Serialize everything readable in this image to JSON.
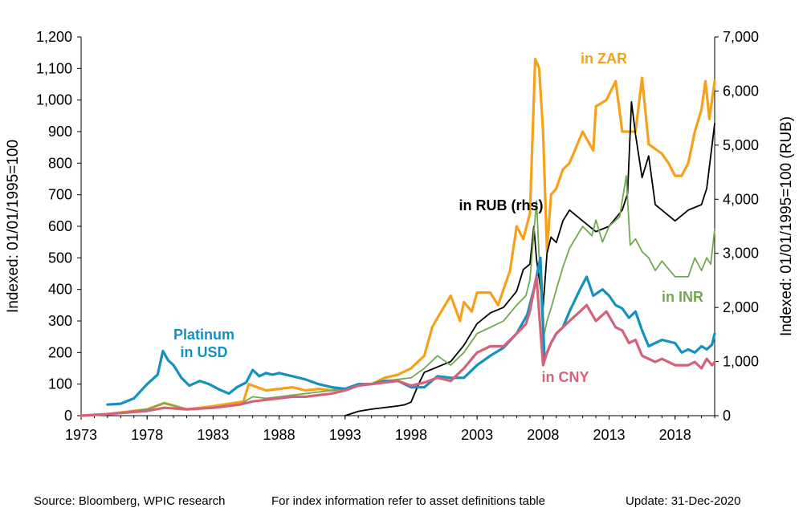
{
  "chart_data": {
    "type": "line",
    "ylabel_left": "Indexed: 01/01/1995=100",
    "ylabel_right": "Indexed: 01/01/1995=100  (RUB)",
    "xlim": [
      1973,
      2021
    ],
    "ylim_left": [
      0,
      1200
    ],
    "ylim_right": [
      0,
      7000
    ],
    "x_ticks": [
      "1973",
      "1978",
      "1983",
      "1988",
      "1993",
      "1998",
      "2003",
      "2008",
      "2013",
      "2018"
    ],
    "y_ticks_left": [
      "0",
      "100",
      "200",
      "300",
      "400",
      "500",
      "600",
      "700",
      "800",
      "900",
      "1,000",
      "1,100",
      "1,200"
    ],
    "y_ticks_right": [
      "0",
      "1,000",
      "2,000",
      "3,000",
      "4,000",
      "5,000",
      "6,000",
      "7,000"
    ],
    "grid": false,
    "series": [
      {
        "name": "Platinum in USD",
        "axis": "left",
        "color": "#1491BF",
        "x": [
          1975.0,
          1976.0,
          1977.0,
          1978.0,
          1978.8,
          1979.2,
          1979.6,
          1980.0,
          1980.6,
          1981.2,
          1982.0,
          1982.7,
          1983.5,
          1984.2,
          1984.8,
          1985.5,
          1986.0,
          1986.5,
          1987.0,
          1987.5,
          1988.0,
          1989.0,
          1990.0,
          1991.0,
          1992.0,
          1993.0,
          1994.0,
          1995.0,
          1996.0,
          1997.0,
          1998.0,
          1999.0,
          2000.0,
          2001.0,
          2002.0,
          2003.0,
          2004.0,
          2005.0,
          2006.0,
          2006.8,
          2007.3,
          2007.8,
          2008.1,
          2008.6,
          2009.0,
          2009.5,
          2010.0,
          2010.8,
          2011.3,
          2011.8,
          2012.5,
          2013.0,
          2013.5,
          2014.0,
          2014.5,
          2015.0,
          2015.5,
          2016.0,
          2016.5,
          2017.0,
          2018.0,
          2018.5,
          2019.0,
          2019.5,
          2020.0,
          2020.4,
          2020.8,
          2021.0
        ],
        "y": [
          35,
          38,
          55,
          100,
          130,
          205,
          175,
          160,
          120,
          95,
          110,
          100,
          82,
          70,
          90,
          105,
          145,
          125,
          135,
          130,
          135,
          125,
          115,
          100,
          90,
          85,
          100,
          100,
          110,
          110,
          90,
          90,
          125,
          120,
          120,
          160,
          190,
          215,
          260,
          320,
          400,
          500,
          180,
          230,
          260,
          280,
          330,
          400,
          440,
          380,
          400,
          380,
          350,
          340,
          310,
          330,
          270,
          220,
          230,
          240,
          230,
          200,
          210,
          200,
          220,
          210,
          225,
          260
        ]
      },
      {
        "name": "in ZAR",
        "axis": "left",
        "color": "#F7A11B",
        "x": [
          1973.0,
          1975.0,
          1978.0,
          1979.3,
          1981.0,
          1983.0,
          1985.3,
          1985.7,
          1987.0,
          1988.0,
          1989.0,
          1990.0,
          1991.0,
          1992.0,
          1993.0,
          1994.0,
          1995.0,
          1996.0,
          1997.0,
          1998.0,
          1999.0,
          1999.6,
          2000.0,
          2001.0,
          2001.7,
          2002.0,
          2002.6,
          2003.0,
          2004.0,
          2004.6,
          2005.0,
          2005.5,
          2006.0,
          2006.5,
          2007.0,
          2007.4,
          2007.7,
          2008.0,
          2008.3,
          2008.6,
          2009.0,
          2009.5,
          2010.0,
          2011.0,
          2011.8,
          2012.0,
          2012.8,
          2013.5,
          2014.0,
          2014.5,
          2015.0,
          2015.5,
          2016.0,
          2017.0,
          2017.5,
          2018.0,
          2018.5,
          2019.0,
          2019.5,
          2020.0,
          2020.3,
          2020.6,
          2021.0
        ],
        "y": [
          0,
          5,
          20,
          40,
          20,
          30,
          45,
          100,
          80,
          85,
          90,
          80,
          85,
          80,
          85,
          100,
          100,
          120,
          130,
          150,
          190,
          280,
          310,
          380,
          300,
          360,
          330,
          390,
          390,
          350,
          400,
          460,
          600,
          560,
          640,
          1130,
          1100,
          900,
          520,
          700,
          720,
          780,
          800,
          900,
          840,
          980,
          1000,
          1060,
          900,
          900,
          900,
          1070,
          860,
          830,
          800,
          760,
          760,
          800,
          900,
          970,
          1060,
          940,
          1060
        ]
      },
      {
        "name": "in RUB (rhs)",
        "axis": "right",
        "color": "#000000",
        "x": [
          1993.0,
          1994.0,
          1995.0,
          1996.0,
          1997.0,
          1997.5,
          1998.0,
          1998.6,
          1999.0,
          2000.0,
          2001.0,
          2002.0,
          2003.0,
          2004.0,
          2005.0,
          2006.0,
          2006.5,
          2007.0,
          2007.3,
          2007.5,
          2008.0,
          2008.3,
          2008.6,
          2009.0,
          2009.5,
          2010.0,
          2011.0,
          2012.0,
          2013.0,
          2014.0,
          2014.4,
          2014.7,
          2015.0,
          2015.5,
          2016.0,
          2016.5,
          2017.0,
          2018.0,
          2019.0,
          2020.0,
          2020.4,
          2020.7,
          2021.0
        ],
        "y": [
          0,
          80,
          120,
          150,
          180,
          200,
          250,
          600,
          800,
          900,
          1000,
          1300,
          1700,
          1900,
          2000,
          2300,
          2700,
          2800,
          3500,
          2900,
          2000,
          3000,
          3300,
          3200,
          3600,
          3800,
          3600,
          3400,
          3500,
          3800,
          4100,
          5800,
          5200,
          4400,
          4800,
          3900,
          3800,
          3600,
          3800,
          3900,
          4200,
          4800,
          5400
        ]
      },
      {
        "name": "in INR",
        "axis": "left",
        "color": "#71A951",
        "x": [
          1973.0,
          1975.0,
          1978.0,
          1979.3,
          1981.0,
          1983.0,
          1985.0,
          1986.0,
          1987.0,
          1988.0,
          1989.0,
          1990.0,
          1991.0,
          1992.0,
          1993.0,
          1994.0,
          1995.0,
          1996.0,
          1997.0,
          1998.0,
          1999.0,
          2000.0,
          2001.0,
          2002.0,
          2003.0,
          2004.0,
          2005.0,
          2006.0,
          2006.7,
          2007.0,
          2007.5,
          2008.0,
          2008.3,
          2008.6,
          2009.0,
          2009.5,
          2010.0,
          2011.0,
          2011.7,
          2012.0,
          2012.5,
          2013.0,
          2013.8,
          2014.3,
          2014.6,
          2015.0,
          2015.5,
          2016.0,
          2016.5,
          2017.0,
          2018.0,
          2019.0,
          2019.5,
          2020.0,
          2020.4,
          2020.7,
          2021.0
        ],
        "y": [
          0,
          5,
          20,
          40,
          20,
          25,
          35,
          60,
          55,
          60,
          65,
          70,
          75,
          80,
          85,
          95,
          100,
          110,
          115,
          120,
          150,
          190,
          160,
          200,
          260,
          280,
          300,
          350,
          380,
          430,
          680,
          240,
          300,
          340,
          400,
          470,
          530,
          600,
          570,
          620,
          550,
          600,
          630,
          760,
          540,
          560,
          520,
          500,
          460,
          490,
          440,
          440,
          500,
          460,
          500,
          480,
          590
        ]
      },
      {
        "name": "in CNY",
        "axis": "left",
        "color": "#D4627A",
        "x": [
          1973.0,
          1975.0,
          1978.0,
          1979.3,
          1981.0,
          1983.0,
          1985.0,
          1986.0,
          1987.0,
          1988.0,
          1989.0,
          1990.0,
          1991.0,
          1992.0,
          1993.0,
          1994.0,
          1995.0,
          1996.0,
          1997.0,
          1998.0,
          1999.0,
          2000.0,
          2001.0,
          2002.0,
          2003.0,
          2004.0,
          2005.0,
          2006.0,
          2006.7,
          2007.0,
          2007.5,
          2008.0,
          2008.3,
          2008.6,
          2009.0,
          2009.5,
          2010.0,
          2010.8,
          2011.3,
          2012.0,
          2012.8,
          2013.5,
          2014.0,
          2014.5,
          2015.0,
          2015.5,
          2016.0,
          2016.5,
          2017.0,
          2018.0,
          2019.0,
          2019.5,
          2020.0,
          2020.4,
          2020.8,
          2021.0
        ],
        "y": [
          0,
          5,
          15,
          25,
          20,
          25,
          35,
          45,
          50,
          55,
          60,
          60,
          65,
          70,
          80,
          95,
          100,
          105,
          110,
          95,
          105,
          120,
          110,
          150,
          200,
          220,
          220,
          260,
          290,
          330,
          440,
          160,
          200,
          230,
          260,
          280,
          300,
          330,
          350,
          300,
          330,
          280,
          270,
          230,
          240,
          190,
          180,
          170,
          180,
          160,
          160,
          170,
          150,
          180,
          160,
          170
        ]
      }
    ],
    "annotations": [
      {
        "text": "Platinum\nin USD",
        "series": "Platinum in USD"
      },
      {
        "text": "in ZAR",
        "series": "in ZAR"
      },
      {
        "text": "in RUB (rhs)",
        "series": "in RUB (rhs)"
      },
      {
        "text": "in INR",
        "series": "in INR"
      },
      {
        "text": "in CNY",
        "series": "in CNY"
      }
    ]
  },
  "footer": {
    "source": "Source: Bloomberg, WPIC research",
    "note": "For index information refer to asset definitions table",
    "update": "Update: 31-Dec-2020"
  }
}
